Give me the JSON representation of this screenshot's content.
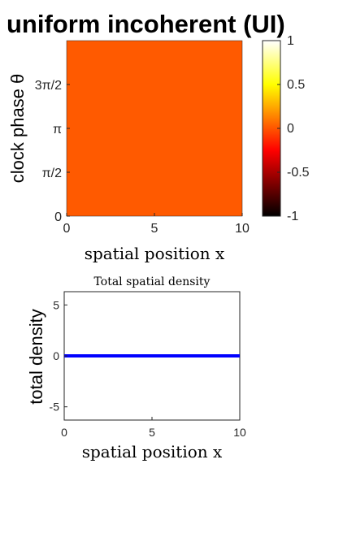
{
  "figure_title": "uniform incoherent (UI)",
  "chart_data": [
    {
      "type": "heatmap",
      "title": "",
      "xlabel": "spatial position x",
      "ylabel": "clock phase θ",
      "xlim": [
        0,
        10
      ],
      "ylim": [
        0,
        6.2832
      ],
      "x_ticks": [
        0,
        5,
        10
      ],
      "x_tick_labels": [
        "0",
        "5",
        "10"
      ],
      "y_ticks": [
        0,
        1.5708,
        3.1416,
        4.7124
      ],
      "y_tick_labels": [
        "0",
        "π/2",
        "π",
        "3π/2"
      ],
      "value": 0,
      "fill_color": "#FF5A00",
      "colorbar": {
        "range": [
          -1,
          1
        ],
        "ticks": [
          1,
          0.5,
          0,
          -0.5,
          -1
        ],
        "tick_labels": [
          "1",
          "0.5",
          "0",
          "-0.5",
          "-1"
        ],
        "colormap": "hot"
      }
    },
    {
      "type": "line",
      "title": "Total spatial density",
      "xlabel": "spatial position x",
      "ylabel": "total density",
      "xlim": [
        0,
        10
      ],
      "ylim": [
        -6.3,
        6.3
      ],
      "x_ticks": [
        0,
        5,
        10
      ],
      "x_tick_labels": [
        "0",
        "5",
        "10"
      ],
      "y_ticks": [
        5,
        0,
        -5
      ],
      "y_tick_labels": [
        "5",
        "0",
        "-5"
      ],
      "series": [
        {
          "x": [
            0,
            10
          ],
          "values": [
            0,
            0
          ],
          "color": "#0000FF"
        }
      ],
      "grid": false
    }
  ]
}
